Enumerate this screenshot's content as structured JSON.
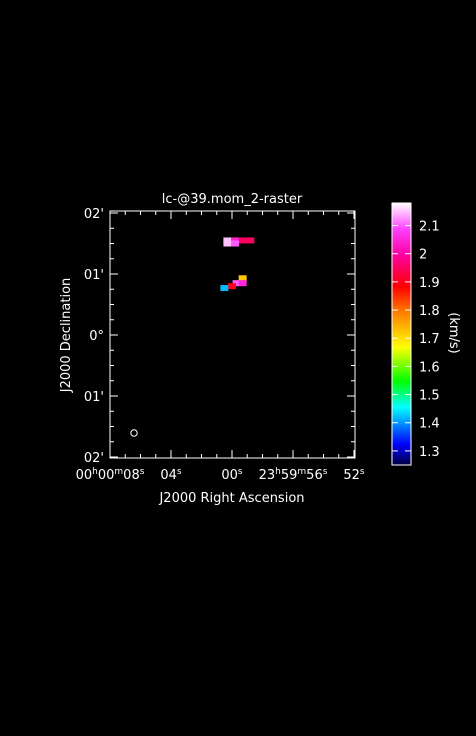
{
  "chart_data": {
    "type": "heatmap",
    "title": "lc-@39.mom_2-raster",
    "xlabel": "J2000 Right Ascension",
    "ylabel": "J2000 Declination",
    "x_ticks": [
      {
        "label": "00h00m08s",
        "parts": [
          "00",
          "h",
          "00",
          "m",
          "08",
          "s"
        ]
      },
      {
        "label": "04s",
        "parts": [
          "04",
          "s"
        ]
      },
      {
        "label": "00s",
        "parts": [
          "00",
          "s"
        ]
      },
      {
        "label": "23h59m56s",
        "parts": [
          "23",
          "h",
          "59",
          "m",
          "56",
          "s"
        ]
      },
      {
        "label": "52s",
        "parts": [
          "52",
          "s"
        ]
      }
    ],
    "y_ticks": [
      "02'",
      "01'",
      "0°",
      "01'",
      "02'"
    ],
    "colorbar": {
      "label": "(km/s)",
      "ticks": [
        "2.1",
        "2",
        "1.9",
        "1.8",
        "1.7",
        "1.6",
        "1.5",
        "1.4",
        "1.3"
      ],
      "range": [
        1.25,
        2.18
      ]
    },
    "pixels": [
      {
        "ra_s": 0.3,
        "dec_arcmin": 1.55,
        "value": 2.15
      },
      {
        "ra_s": -0.2,
        "dec_arcmin": 1.55,
        "value": 2.05
      },
      {
        "ra_s": -0.7,
        "dec_arcmin": 1.55,
        "value": 1.95
      },
      {
        "ra_s": -1.2,
        "dec_arcmin": 1.55,
        "value": 1.95
      },
      {
        "ra_s": 0.3,
        "dec_arcmin": 1.5,
        "value": 2.15
      },
      {
        "ra_s": -0.2,
        "dec_arcmin": 1.5,
        "value": 2.1
      },
      {
        "ra_s": -0.7,
        "dec_arcmin": 0.93,
        "value": 1.72
      },
      {
        "ra_s": -0.3,
        "dec_arcmin": 0.85,
        "value": 2.1
      },
      {
        "ra_s": 0.0,
        "dec_arcmin": 0.8,
        "value": 1.9
      },
      {
        "ra_s": 0.5,
        "dec_arcmin": 0.77,
        "value": 1.42
      },
      {
        "ra_s": -0.7,
        "dec_arcmin": 0.85,
        "value": 2.05
      }
    ],
    "beam": {
      "ra_s": 8.0,
      "dec_arcmin": -1.6
    }
  }
}
